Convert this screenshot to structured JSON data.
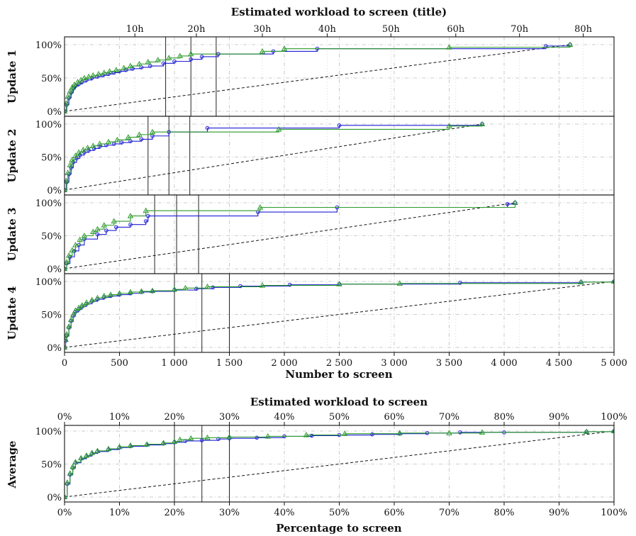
{
  "chart_data": [
    {
      "type": "line",
      "title": "Estimated workload to screen (title)",
      "xlabel": "Number to screen",
      "x_ticks": [
        "0",
        "500",
        "1 000",
        "1 500",
        "2 000",
        "2 500",
        "3 000",
        "3 500",
        "4 000",
        "4 500",
        "5 000"
      ],
      "xlim": [
        0,
        5000
      ],
      "top_axis_ticks": [
        "10h",
        "20h",
        "30h",
        "40h",
        "50h",
        "60h",
        "70h",
        "80h"
      ],
      "top_axis_values": [
        640,
        1200,
        1800,
        2390,
        2970,
        3560,
        4140,
        4720
      ],
      "y_ticks": [
        "0%",
        "50%",
        "100%"
      ],
      "ylim": [
        0,
        100
      ],
      "grid": true,
      "panels": [
        {
          "label": "Update 1",
          "random_baseline": {
            "x": [
              0,
              4600
            ],
            "y": [
              0,
              100
            ]
          },
          "vlines": [
            920,
            1150,
            1380
          ],
          "series": [
            {
              "marker": "circle",
              "color": "#1f1fd6",
              "x": [
                0,
                20,
                40,
                60,
                80,
                100,
                130,
                160,
                200,
                250,
                300,
                350,
                400,
                450,
                500,
                560,
                620,
                700,
                780,
                900,
                1000,
                1150,
                1250,
                1400,
                1900,
                2300,
                4380,
                4600
              ],
              "y": [
                0,
                10,
                20,
                28,
                34,
                38,
                41,
                44,
                47,
                50,
                52,
                54,
                56,
                58,
                60,
                62,
                64,
                66,
                68,
                72,
                75,
                78,
                82,
                86,
                90,
                94,
                98,
                100
              ]
            },
            {
              "marker": "triangle",
              "color": "#2a9a2a",
              "x": [
                0,
                15,
                30,
                50,
                70,
                90,
                120,
                150,
                180,
                220,
                260,
                310,
                360,
                410,
                470,
                540,
                600,
                680,
                760,
                850,
                950,
                1050,
                1150,
                1800,
                2000,
                3500,
                4600
              ],
              "y": [
                0,
                12,
                22,
                30,
                36,
                40,
                44,
                47,
                50,
                52,
                54,
                56,
                58,
                60,
                62,
                65,
                68,
                71,
                74,
                77,
                80,
                83,
                86,
                90,
                94,
                96,
                100
              ]
            }
          ]
        },
        {
          "label": "Update 2",
          "random_baseline": {
            "x": [
              0,
              3800
            ],
            "y": [
              0,
              100
            ]
          },
          "vlines": [
            760,
            950,
            1140
          ],
          "series": [
            {
              "marker": "circle",
              "color": "#1f1fd6",
              "x": [
                0,
                20,
                40,
                60,
                80,
                110,
                140,
                180,
                220,
                270,
                320,
                380,
                450,
                520,
                600,
                700,
                800,
                950,
                1300,
                2500,
                3800
              ],
              "y": [
                0,
                12,
                24,
                34,
                42,
                48,
                53,
                57,
                60,
                63,
                66,
                68,
                70,
                72,
                74,
                77,
                82,
                88,
                94,
                98,
                100
              ]
            },
            {
              "marker": "triangle",
              "color": "#2a9a2a",
              "x": [
                0,
                15,
                30,
                50,
                70,
                100,
                130,
                170,
                210,
                260,
                320,
                400,
                480,
                580,
                680,
                800,
                1950,
                3500,
                3800
              ],
              "y": [
                0,
                14,
                26,
                38,
                46,
                52,
                57,
                61,
                64,
                67,
                70,
                73,
                76,
                80,
                84,
                88,
                92,
                97,
                100
              ]
            }
          ]
        },
        {
          "label": "Update 3",
          "random_baseline": {
            "x": [
              0,
              4100
            ],
            "y": [
              0,
              100
            ]
          },
          "vlines": [
            820,
            1020,
            1220
          ],
          "series": [
            {
              "marker": "circle",
              "color": "#1f1fd6",
              "x": [
                0,
                20,
                50,
                90,
                130,
                180,
                300,
                380,
                470,
                600,
                740,
                760,
                1760,
                2480,
                4030,
                4100
              ],
              "y": [
                0,
                8,
                18,
                27,
                36,
                45,
                52,
                58,
                63,
                67,
                72,
                80,
                86,
                93,
                98,
                100
              ]
            },
            {
              "marker": "triangle",
              "color": "#2a9a2a",
              "x": [
                0,
                20,
                40,
                70,
                100,
                140,
                180,
                260,
                300,
                360,
                450,
                600,
                740,
                1780,
                4100
              ],
              "y": [
                0,
                10,
                20,
                28,
                36,
                44,
                50,
                56,
                60,
                66,
                72,
                80,
                88,
                93,
                100
              ]
            }
          ]
        },
        {
          "label": "Update 4",
          "random_baseline": {
            "x": [
              0,
              5000
            ],
            "y": [
              0,
              100
            ]
          },
          "vlines": [
            1000,
            1250,
            1500
          ],
          "series": [
            {
              "marker": "circle",
              "color": "#1f1fd6",
              "x": [
                0,
                10,
                20,
                40,
                60,
                80,
                100,
                130,
                160,
                200,
                250,
                300,
                360,
                420,
                500,
                600,
                700,
                800,
                1000,
                1200,
                1350,
                1600,
                2050,
                2500,
                3600,
                4700,
                5000
              ],
              "y": [
                0,
                10,
                18,
                30,
                40,
                48,
                54,
                58,
                62,
                66,
                70,
                73,
                76,
                78,
                80,
                82,
                84,
                85,
                87,
                89,
                91,
                93,
                95,
                96,
                98,
                99,
                100
              ]
            },
            {
              "marker": "triangle",
              "color": "#2a9a2a",
              "x": [
                0,
                10,
                20,
                40,
                60,
                80,
                100,
                130,
                160,
                200,
                250,
                300,
                360,
                420,
                500,
                600,
                700,
                800,
                1000,
                1100,
                1300,
                1800,
                2500,
                3050,
                4700,
                5000
              ],
              "y": [
                0,
                12,
                20,
                32,
                42,
                50,
                56,
                60,
                64,
                68,
                72,
                75,
                78,
                80,
                82,
                84,
                85,
                86,
                88,
                90,
                92,
                94,
                96,
                97,
                99,
                100
              ]
            }
          ]
        }
      ]
    },
    {
      "type": "line",
      "title": "Estimated workload to screen",
      "xlabel": "Percentage to screen",
      "ylabel": "Average",
      "x_ticks": [
        "0%",
        "10%",
        "20%",
        "30%",
        "40%",
        "50%",
        "60%",
        "70%",
        "80%",
        "90%",
        "100%"
      ],
      "top_axis_ticks": [
        "0%",
        "10%",
        "20%",
        "30%",
        "40%",
        "50%",
        "60%",
        "70%",
        "80%",
        "90%",
        "100%"
      ],
      "y_ticks": [
        "0%",
        "50%",
        "100%"
      ],
      "xlim": [
        0,
        100
      ],
      "ylim": [
        0,
        100
      ],
      "grid": true,
      "random_baseline": {
        "x": [
          0,
          100
        ],
        "y": [
          0,
          100
        ]
      },
      "vlines": [
        20,
        25,
        30
      ],
      "series": [
        {
          "marker": "circle",
          "color": "#1f1fd6",
          "x": [
            0,
            0.5,
            1,
            1.5,
            2,
            3,
            4,
            5,
            6,
            8,
            10,
            12,
            15,
            18,
            20,
            22,
            25,
            28,
            30,
            35,
            40,
            45,
            50,
            56,
            61,
            66,
            72,
            80,
            95,
            100
          ],
          "y": [
            0,
            20,
            34,
            44,
            52,
            58,
            62,
            66,
            69,
            72,
            75,
            77,
            79,
            81,
            83,
            85,
            86,
            88,
            89,
            90,
            92,
            93,
            94,
            95,
            96,
            97,
            98,
            98,
            99,
            100
          ]
        },
        {
          "marker": "triangle",
          "color": "#2a9a2a",
          "x": [
            0,
            0.5,
            1,
            1.5,
            2,
            3,
            4,
            5,
            6,
            8,
            10,
            12,
            15,
            18,
            20,
            21,
            23,
            26,
            30,
            37,
            44,
            51,
            61,
            70,
            76,
            95,
            100
          ],
          "y": [
            0,
            22,
            36,
            46,
            53,
            59,
            63,
            67,
            70,
            73,
            76,
            78,
            80,
            82,
            84,
            87,
            89,
            90,
            91,
            92,
            94,
            96,
            97,
            97,
            98,
            99,
            100
          ]
        }
      ]
    }
  ]
}
